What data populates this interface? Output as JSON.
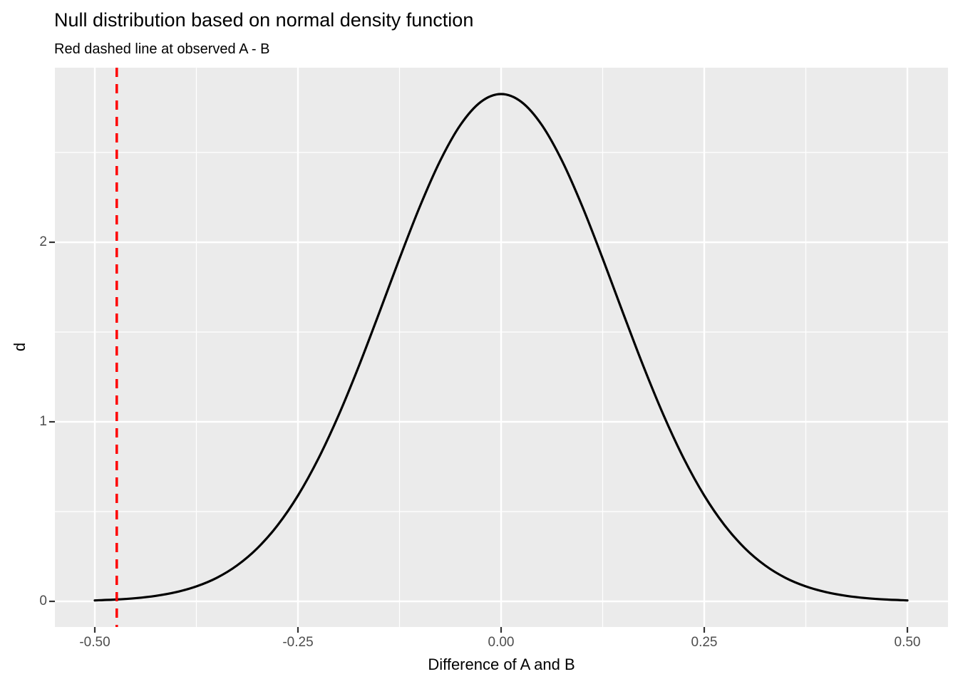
{
  "title": "Null distribution based on normal density function",
  "subtitle": "Red dashed line at observed A - B",
  "chart_data": {
    "type": "line",
    "title": "Null distribution based on normal density function",
    "subtitle": "Red dashed line at observed A - B",
    "xlabel": "Difference of A and B",
    "ylabel": "d",
    "xlim": [
      -0.5,
      0.5
    ],
    "ylim": [
      0,
      2.83
    ],
    "grid": "ggplot2 style: gray panel, white major and minor gridlines",
    "legend_position": "none",
    "panel_bg_color": "#EBEBEB",
    "gridline_color": "#FFFFFF",
    "tick_mark_color": "#333333",
    "tick_label_color": "#4d4d4d",
    "x_ticks": [
      -0.5,
      -0.25,
      0,
      0.25,
      0.5
    ],
    "x_tick_labels": [
      "-0.50",
      "-0.25",
      "0.00",
      "0.25",
      "0.50"
    ],
    "y_ticks": [
      0,
      1,
      2
    ],
    "y_tick_labels": [
      "0",
      "1",
      "2"
    ],
    "series": [
      {
        "name": "normal-density-curve",
        "color": "#000000",
        "description": "Normal density, mean 0, sd 0.141, peak 2.825",
        "points": [
          [
            -0.5,
            0.0053
          ],
          [
            -0.475,
            0.0099
          ],
          [
            -0.45,
            0.0176
          ],
          [
            -0.425,
            0.0305
          ],
          [
            -0.4,
            0.0512
          ],
          [
            -0.375,
            0.0833
          ],
          [
            -0.35,
            0.1308
          ],
          [
            -0.325,
            0.1999
          ],
          [
            -0.3,
            0.2958
          ],
          [
            -0.275,
            0.424
          ],
          [
            -0.25,
            0.5892
          ],
          [
            -0.225,
            0.7938
          ],
          [
            -0.2,
            1.0362
          ],
          [
            -0.175,
            1.3108
          ],
          [
            -0.15,
            1.607
          ],
          [
            -0.125,
            1.9095
          ],
          [
            -0.1,
            2.1987
          ],
          [
            -0.075,
            2.4537
          ],
          [
            -0.05,
            2.6537
          ],
          [
            -0.025,
            2.7815
          ],
          [
            0.0,
            2.8254
          ],
          [
            0.025,
            2.7815
          ],
          [
            0.05,
            2.6537
          ],
          [
            0.075,
            2.4537
          ],
          [
            0.1,
            2.1987
          ],
          [
            0.125,
            1.9095
          ],
          [
            0.15,
            1.607
          ],
          [
            0.175,
            1.3108
          ],
          [
            0.2,
            1.0362
          ],
          [
            0.225,
            0.7938
          ],
          [
            0.25,
            0.5892
          ],
          [
            0.275,
            0.424
          ],
          [
            0.3,
            0.2958
          ],
          [
            0.325,
            0.1999
          ],
          [
            0.35,
            0.1308
          ],
          [
            0.375,
            0.0833
          ],
          [
            0.4,
            0.0512
          ],
          [
            0.425,
            0.0305
          ],
          [
            0.45,
            0.0176
          ],
          [
            0.475,
            0.0099
          ],
          [
            0.5,
            0.0053
          ]
        ]
      }
    ],
    "vline": {
      "x": -0.473,
      "color": "#FF0000",
      "style": "dashed",
      "meaning": "observed A - B"
    }
  }
}
